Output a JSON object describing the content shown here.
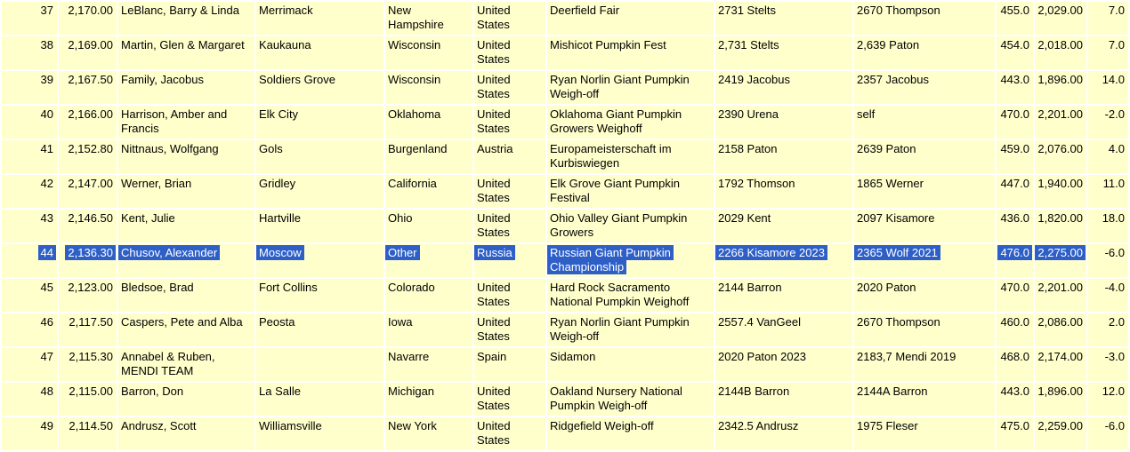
{
  "colors": {
    "cell_bg": "#ffffcc",
    "grid": "#ffffff",
    "text": "#000000",
    "selection_bg": "#2e5fc7",
    "selection_text": "#ffffff"
  },
  "table": {
    "column_keys": [
      "rank",
      "weight",
      "grower",
      "city",
      "state",
      "country",
      "event",
      "mother",
      "father",
      "ott",
      "est",
      "pct"
    ],
    "selection": {
      "selected_rank": "44",
      "unselected_columns_in_selected_row": [
        "pct"
      ]
    },
    "rows": [
      {
        "rank": "37",
        "weight": "2,170.00",
        "grower": "LeBlanc, Barry & Linda",
        "city": "Merrimack",
        "state": "New Hampshire",
        "country": "United States",
        "event": "Deerfield Fair",
        "mother": "2731 Stelts",
        "father": "2670 Thompson",
        "ott": "455.0",
        "est": "2,029.00",
        "pct": "7.0",
        "selected": false
      },
      {
        "rank": "38",
        "weight": "2,169.00",
        "grower": "Martin, Glen & Margaret",
        "city": "Kaukauna",
        "state": "Wisconsin",
        "country": "United States",
        "event": "Mishicot Pumpkin Fest",
        "mother": "2,731 Stelts",
        "father": "2,639 Paton",
        "ott": "454.0",
        "est": "2,018.00",
        "pct": "7.0",
        "selected": false
      },
      {
        "rank": "39",
        "weight": "2,167.50",
        "grower": "Family, Jacobus",
        "city": "Soldiers Grove",
        "state": "Wisconsin",
        "country": "United States",
        "event": "Ryan Norlin Giant Pumpkin Weigh-off",
        "mother": "2419 Jacobus",
        "father": "2357 Jacobus",
        "ott": "443.0",
        "est": "1,896.00",
        "pct": "14.0",
        "selected": false
      },
      {
        "rank": "40",
        "weight": "2,166.00",
        "grower": "Harrison, Amber and Francis",
        "city": "Elk City",
        "state": "Oklahoma",
        "country": "United States",
        "event": "Oklahoma Giant Pumpkin Growers Weighoff",
        "mother": "2390 Urena",
        "father": "self",
        "ott": "470.0",
        "est": "2,201.00",
        "pct": "-2.0",
        "selected": false
      },
      {
        "rank": "41",
        "weight": "2,152.80",
        "grower": "Nittnaus, Wolfgang",
        "city": "Gols",
        "state": "Burgenland",
        "country": "Austria",
        "event": "Europameisterschaft im Kurbiswiegen",
        "mother": "2158 Paton",
        "father": "2639 Paton",
        "ott": "459.0",
        "est": "2,076.00",
        "pct": "4.0",
        "selected": false
      },
      {
        "rank": "42",
        "weight": "2,147.00",
        "grower": "Werner, Brian",
        "city": "Gridley",
        "state": "California",
        "country": "United States",
        "event": "Elk Grove Giant Pumpkin Festival",
        "mother": "1792 Thomson",
        "father": "1865 Werner",
        "ott": "447.0",
        "est": "1,940.00",
        "pct": "11.0",
        "selected": false
      },
      {
        "rank": "43",
        "weight": "2,146.50",
        "grower": "Kent, Julie",
        "city": "Hartville",
        "state": "Ohio",
        "country": "United States",
        "event": "Ohio Valley Giant Pumpkin Growers",
        "mother": "2029 Kent",
        "father": "2097 Kisamore",
        "ott": "436.0",
        "est": "1,820.00",
        "pct": "18.0",
        "selected": false
      },
      {
        "rank": "44",
        "weight": "2,136.30",
        "grower": "Chusov, Alexander",
        "city": "Moscow",
        "state": "Other",
        "country": "Russia",
        "event": "Russian Giant Pumpkin Championship",
        "mother": "2266 Kisamore 2023",
        "father": "2365 Wolf 2021",
        "ott": "476.0",
        "est": "2,275.00",
        "pct": "-6.0",
        "selected": true
      },
      {
        "rank": "45",
        "weight": "2,123.00",
        "grower": "Bledsoe, Brad",
        "city": "Fort Collins",
        "state": "Colorado",
        "country": "United States",
        "event": "Hard Rock Sacramento National Pumpkin Weighoff",
        "mother": "2144 Barron",
        "father": "2020 Paton",
        "ott": "470.0",
        "est": "2,201.00",
        "pct": "-4.0",
        "selected": false
      },
      {
        "rank": "46",
        "weight": "2,117.50",
        "grower": "Caspers, Pete and Alba",
        "city": "Peosta",
        "state": "Iowa",
        "country": "United States",
        "event": "Ryan Norlin Giant Pumpkin Weigh-off",
        "mother": "2557.4 VanGeel",
        "father": "2670 Thompson",
        "ott": "460.0",
        "est": "2,086.00",
        "pct": "2.0",
        "selected": false
      },
      {
        "rank": "47",
        "weight": "2,115.30",
        "grower": "Annabel & Ruben, MENDI TEAM",
        "city": "",
        "state": "Navarre",
        "country": "Spain",
        "event": "Sidamon",
        "mother": "2020 Paton 2023",
        "father": "2183,7 Mendi 2019",
        "ott": "468.0",
        "est": "2,174.00",
        "pct": "-3.0",
        "selected": false
      },
      {
        "rank": "48",
        "weight": "2,115.00",
        "grower": "Barron, Don",
        "city": "La Salle",
        "state": "Michigan",
        "country": "United States",
        "event": "Oakland Nursery National Pumpkin Weigh-off",
        "mother": "2144B Barron",
        "father": "2144A Barron",
        "ott": "443.0",
        "est": "1,896.00",
        "pct": "12.0",
        "selected": false
      },
      {
        "rank": "49",
        "weight": "2,114.50",
        "grower": "Andrusz, Scott",
        "city": "Williamsville",
        "state": "New York",
        "country": "United States",
        "event": "Ridgefield Weigh-off",
        "mother": "2342.5 Andrusz",
        "father": "1975 Fleser",
        "ott": "475.0",
        "est": "2,259.00",
        "pct": "-6.0",
        "selected": false
      }
    ]
  }
}
